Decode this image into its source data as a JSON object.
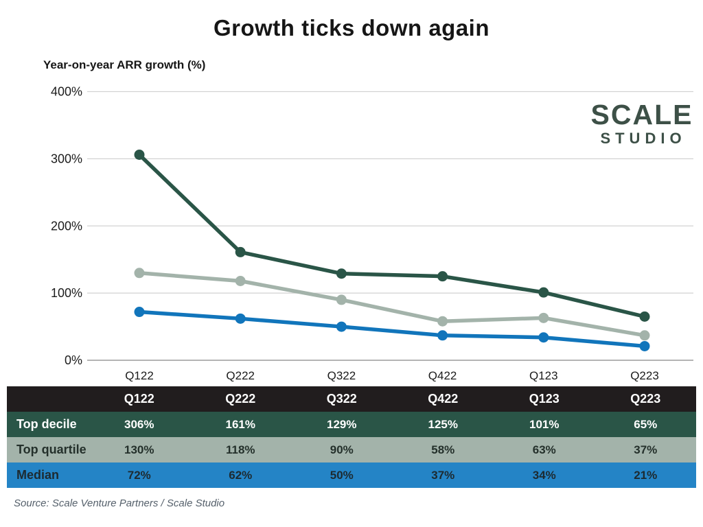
{
  "title": "Growth ticks down again",
  "subtitle": "Year-on-year ARR growth (%)",
  "logo": {
    "line1": "SCALE",
    "line2": "STUDIO"
  },
  "source": "Source: Scale Venture Partners / Scale Studio",
  "colors": {
    "top_decile": "#2a5547",
    "top_quartile": "#a3b3aa",
    "median_line": "#1175bb",
    "median_row": "#2484c6",
    "table_header_bg": "#211d1e",
    "gridline": "#d2d2d2",
    "axis_line": "#9b9b9b",
    "text_dark": "#1b1b1b",
    "text_light": "#ffffff",
    "logo": "#3d5047"
  },
  "chart_data": {
    "type": "line",
    "title": "Growth ticks down again",
    "ylabel": "Year-on-year ARR growth (%)",
    "categories": [
      "Q122",
      "Q222",
      "Q322",
      "Q422",
      "Q123",
      "Q223"
    ],
    "series": [
      {
        "name": "Top decile",
        "color": "#2a5547",
        "values": [
          306,
          161,
          129,
          125,
          101,
          65
        ]
      },
      {
        "name": "Top quartile",
        "color": "#a3b3aa",
        "values": [
          130,
          118,
          90,
          58,
          63,
          37
        ]
      },
      {
        "name": "Median",
        "color": "#1175bb",
        "values": [
          72,
          62,
          50,
          37,
          34,
          21
        ]
      }
    ],
    "ylim": [
      0,
      400
    ],
    "yticks": [
      0,
      100,
      200,
      300,
      400
    ],
    "ytick_suffix": "%",
    "grid": true,
    "legend_position": "table-below"
  },
  "table": {
    "header": [
      "",
      "Q122",
      "Q222",
      "Q322",
      "Q422",
      "Q123",
      "Q223"
    ],
    "header_bg": "#211d1e",
    "header_fg": "#ffffff",
    "rows": [
      {
        "label": "Top decile",
        "values": [
          "306%",
          "161%",
          "129%",
          "125%",
          "101%",
          "65%"
        ],
        "bg": "#2a5547",
        "fg": "#ffffff"
      },
      {
        "label": "Top quartile",
        "values": [
          "130%",
          "118%",
          "90%",
          "58%",
          "63%",
          "37%"
        ],
        "bg": "#a3b3aa",
        "fg": "#24302b"
      },
      {
        "label": "Median",
        "values": [
          "72%",
          "62%",
          "50%",
          "37%",
          "34%",
          "21%"
        ],
        "bg": "#2484c6",
        "fg": "#1d2a30"
      }
    ]
  }
}
